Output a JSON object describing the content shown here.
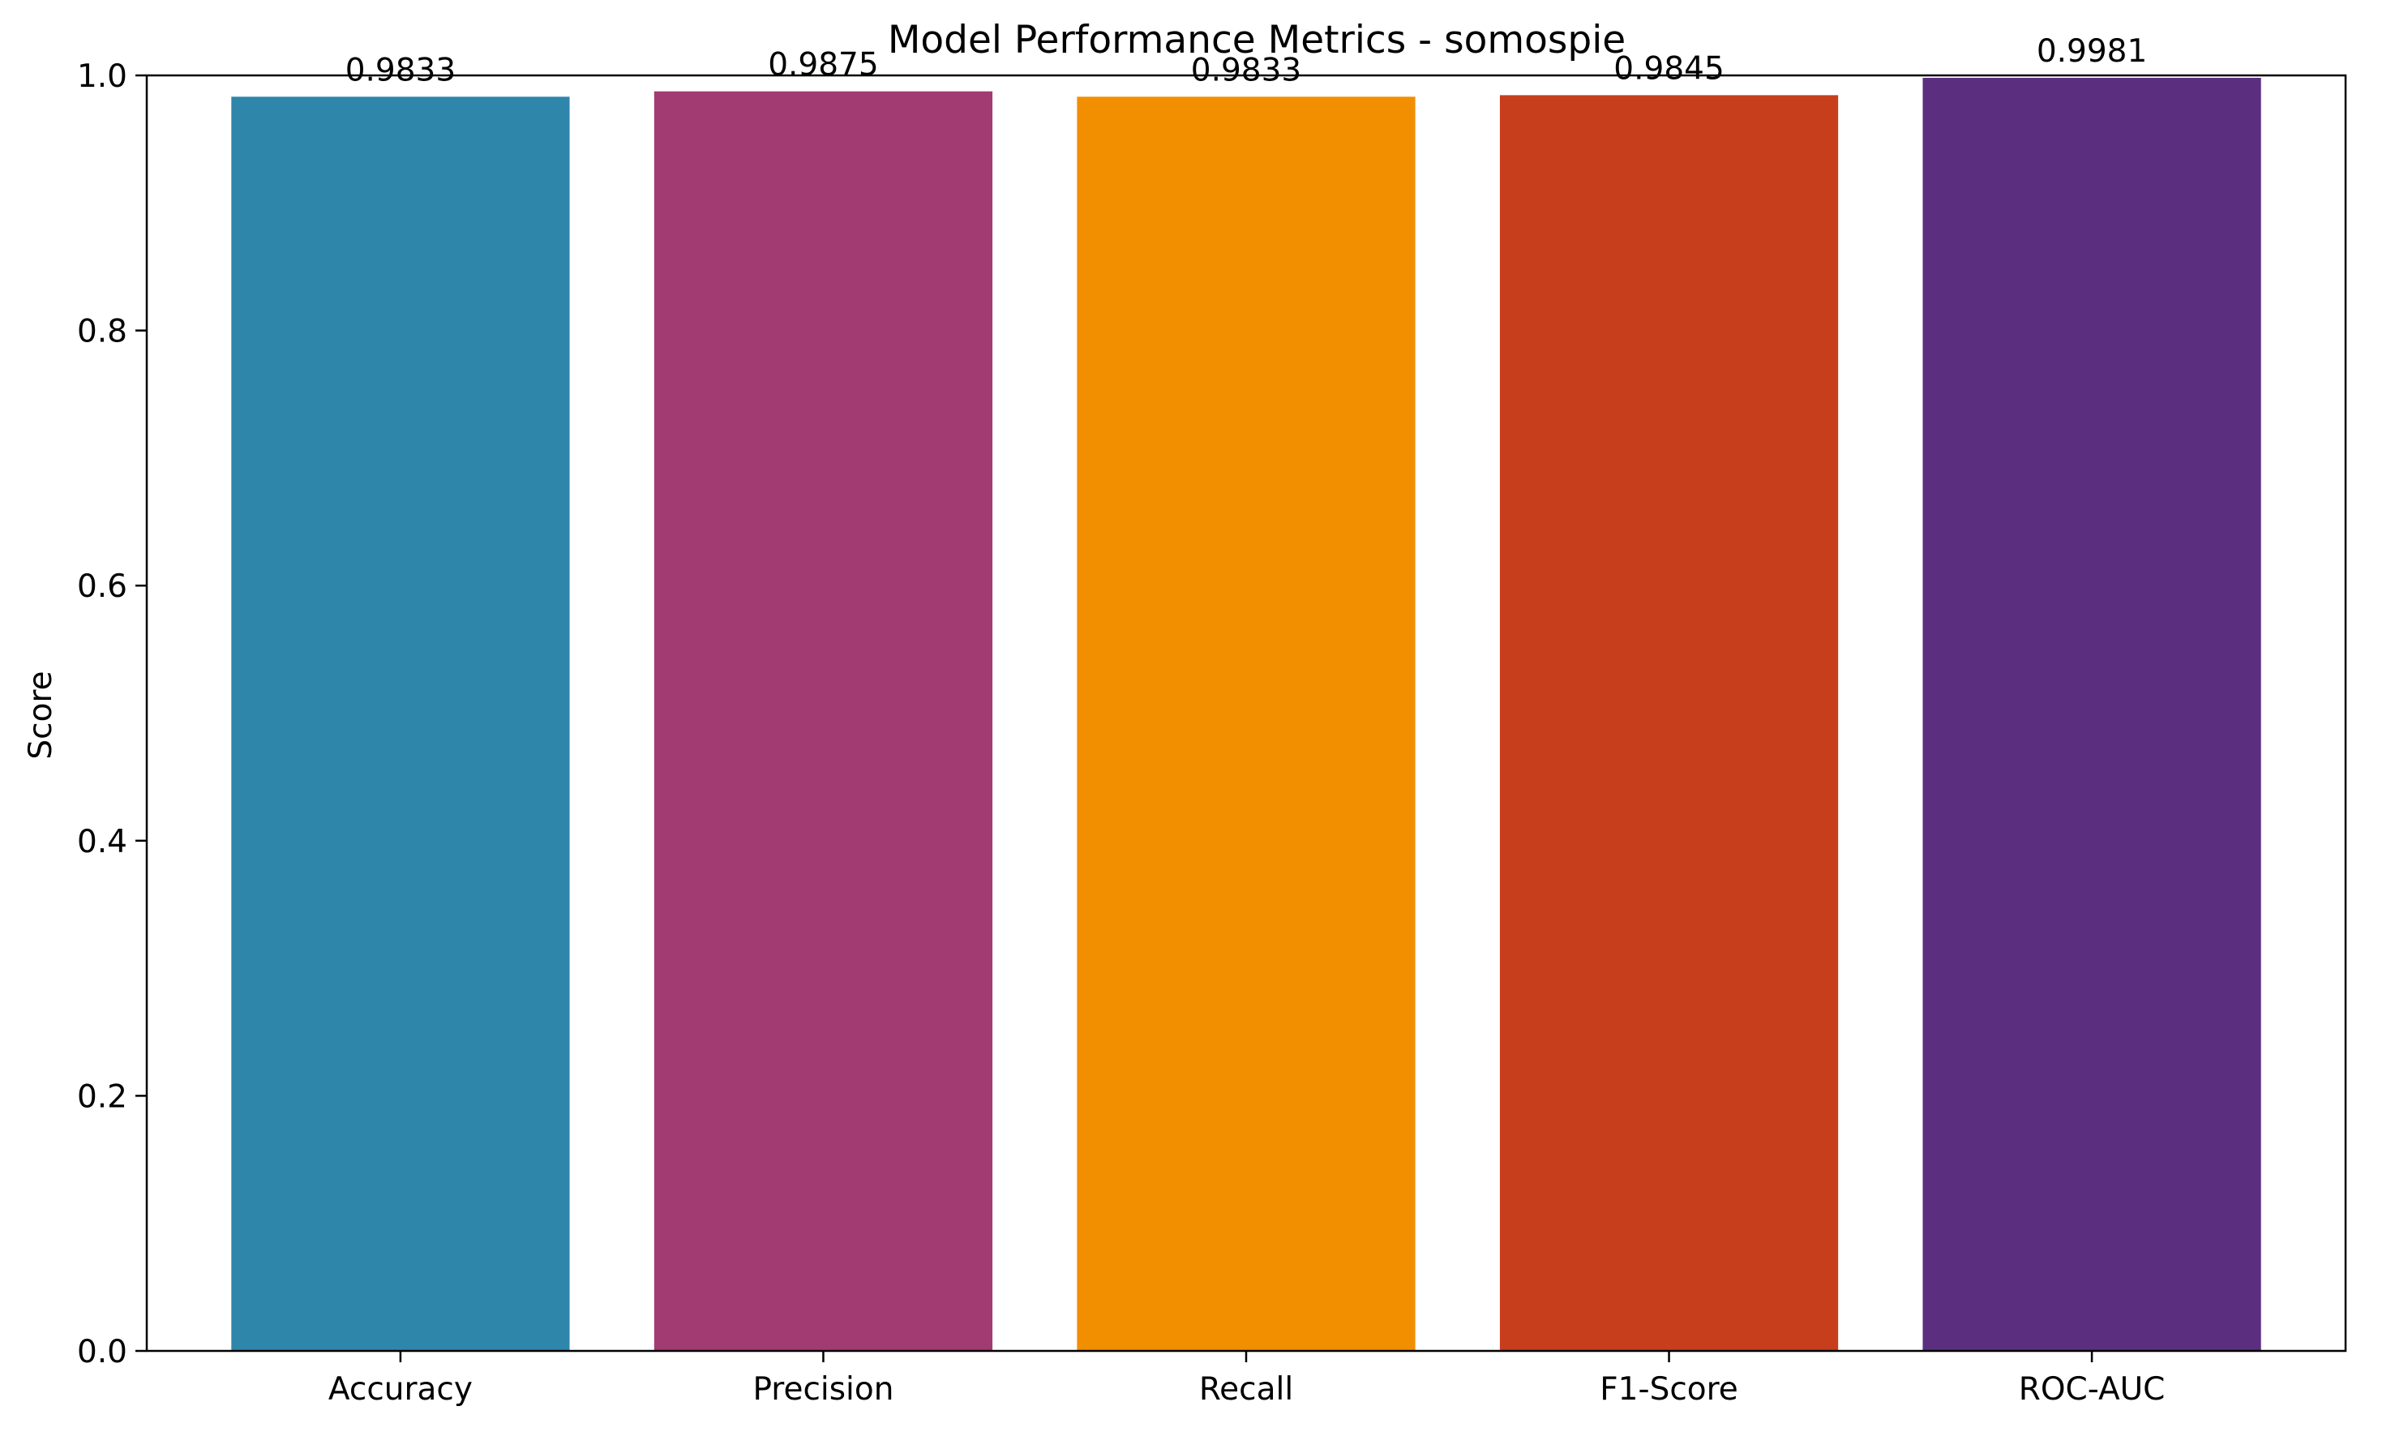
{
  "chart_data": {
    "type": "bar",
    "title": "Model Performance Metrics - somospie",
    "xlabel": "",
    "ylabel": "Score",
    "ylim": [
      0,
      1.0
    ],
    "yticks": [
      "0.0",
      "0.2",
      "0.4",
      "0.6",
      "0.8",
      "1.0"
    ],
    "ytick_values": [
      0,
      0.2,
      0.4,
      0.6,
      0.8,
      1.0
    ],
    "categories": [
      "Accuracy",
      "Precision",
      "Recall",
      "F1-Score",
      "ROC-AUC"
    ],
    "values": [
      0.9833,
      0.9875,
      0.9833,
      0.9845,
      0.9981
    ],
    "data_labels": [
      "0.9833",
      "0.9875",
      "0.9833",
      "0.9845",
      "0.9981"
    ],
    "colors": [
      "#2e86ab",
      "#a23b72",
      "#f18f01",
      "#c73e1d",
      "#5c2e7f"
    ],
    "grid": false,
    "legend": "none"
  }
}
